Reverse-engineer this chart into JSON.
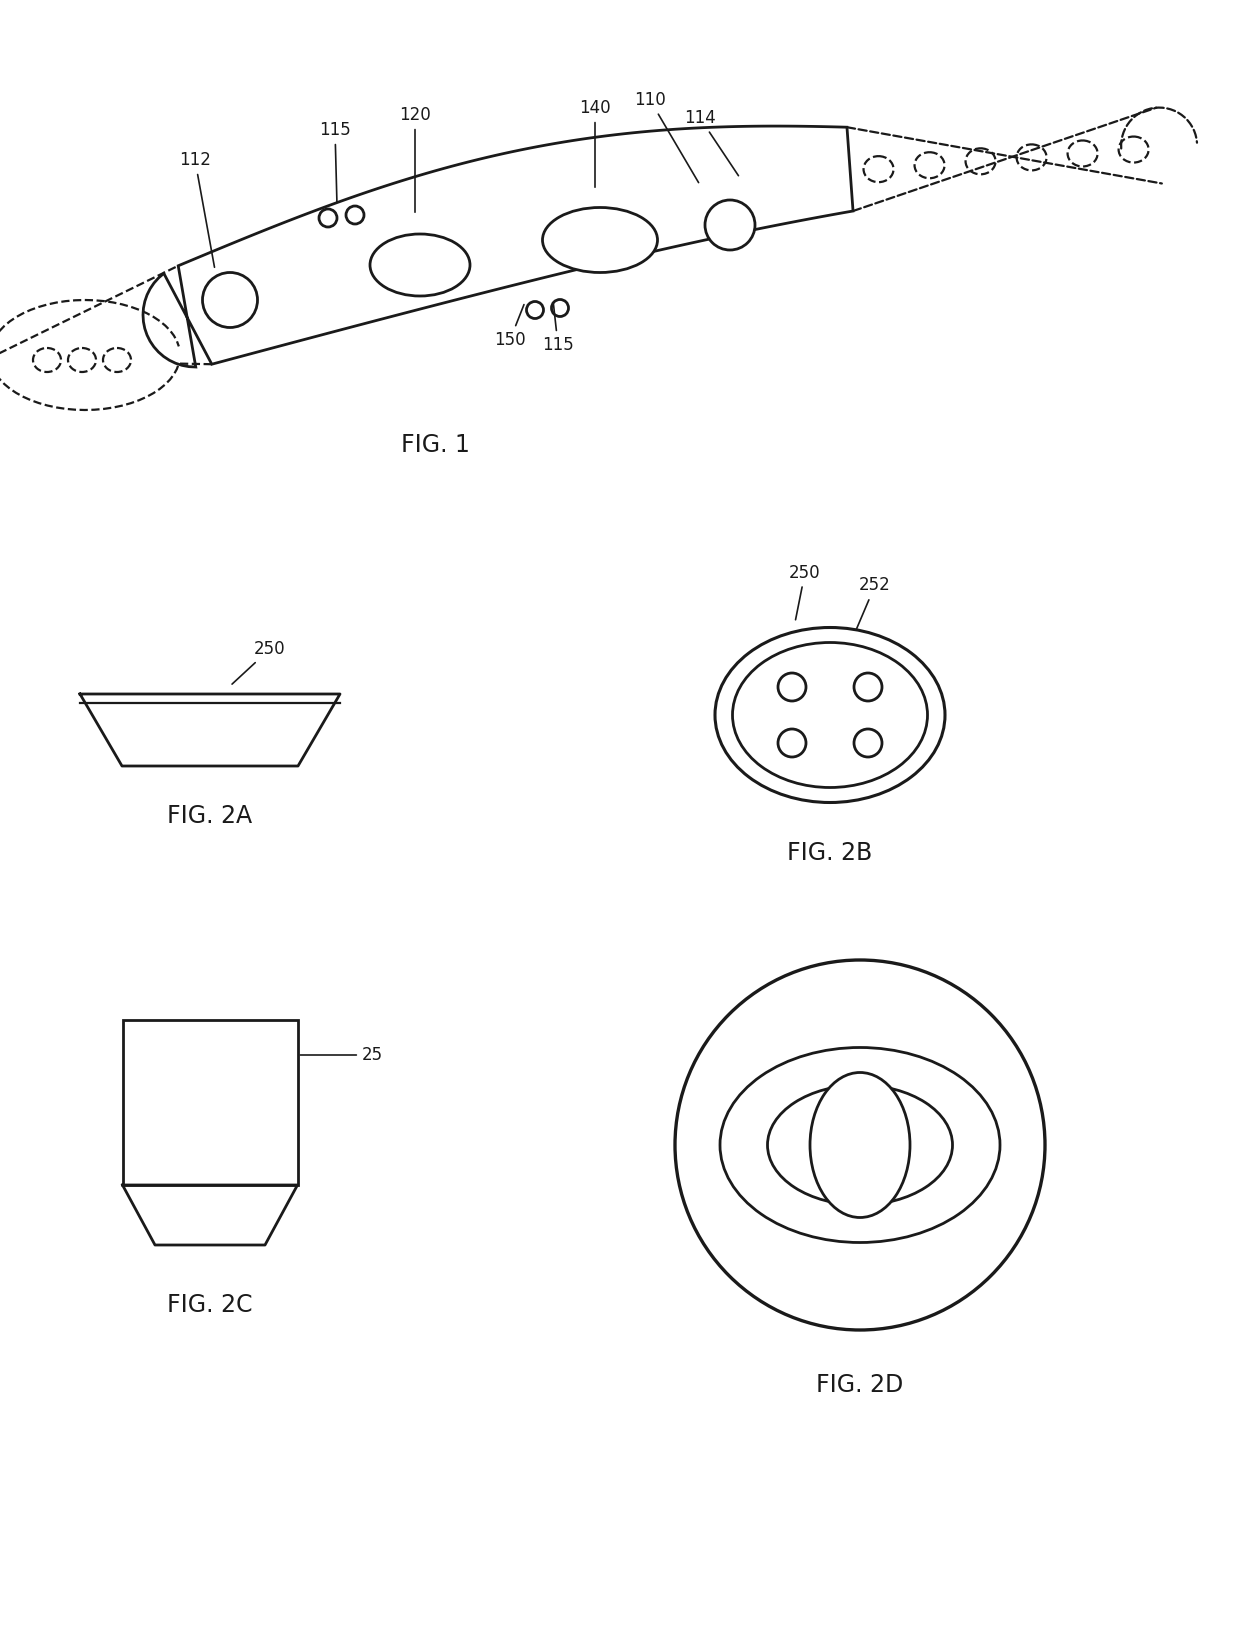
{
  "background_color": "#ffffff",
  "line_color": "#1a1a1a",
  "line_width": 2.0,
  "dashed_lw": 1.6,
  "font_size_label": 16,
  "font_size_annot": 12,
  "fig1_label": "FIG. 1",
  "fig2a_label": "FIG. 2A",
  "fig2b_label": "FIG. 2B",
  "fig2c_label": "FIG. 2C",
  "fig2d_label": "FIG. 2D"
}
